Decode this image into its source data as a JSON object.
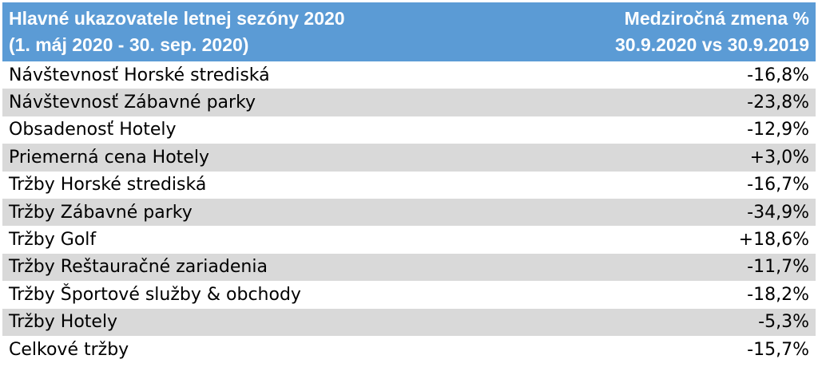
{
  "header": {
    "left_line1": "Hlavné ukazovatele letnej sezóny 2020",
    "left_line2": "(1. máj 2020 - 30. sep. 2020)",
    "right_line1": "Medziročná zmena %",
    "right_line2": "30.9.2020 vs 30.9.2019"
  },
  "rows": [
    {
      "label": "Návštevnosť Horské strediská",
      "value": "-16,8%"
    },
    {
      "label": "Návštevnosť Zábavné parky",
      "value": "-23,8%"
    },
    {
      "label": "Obsadenosť Hotely",
      "value": "-12,9%"
    },
    {
      "label": "Priemerná cena Hotely",
      "value": "+3,0%"
    },
    {
      "label": "Tržby Horské strediská",
      "value": "-16,7%"
    },
    {
      "label": "Tržby Zábavné parky",
      "value": "-34,9%"
    },
    {
      "label": "Tržby Golf",
      "value": "+18,6%"
    },
    {
      "label": "Tržby Reštauračné zariadenia",
      "value": "-11,7%"
    },
    {
      "label": "Tržby Športové služby & obchody",
      "value": "-18,2%"
    },
    {
      "label": "Tržby Hotely",
      "value": "-5,3%"
    },
    {
      "label": "Celkové tržby",
      "value": "-15,7%"
    }
  ],
  "colors": {
    "header_bg": "#5b9bd5",
    "header_text": "#ffffff",
    "alt_row_bg": "#d9d9d9"
  }
}
